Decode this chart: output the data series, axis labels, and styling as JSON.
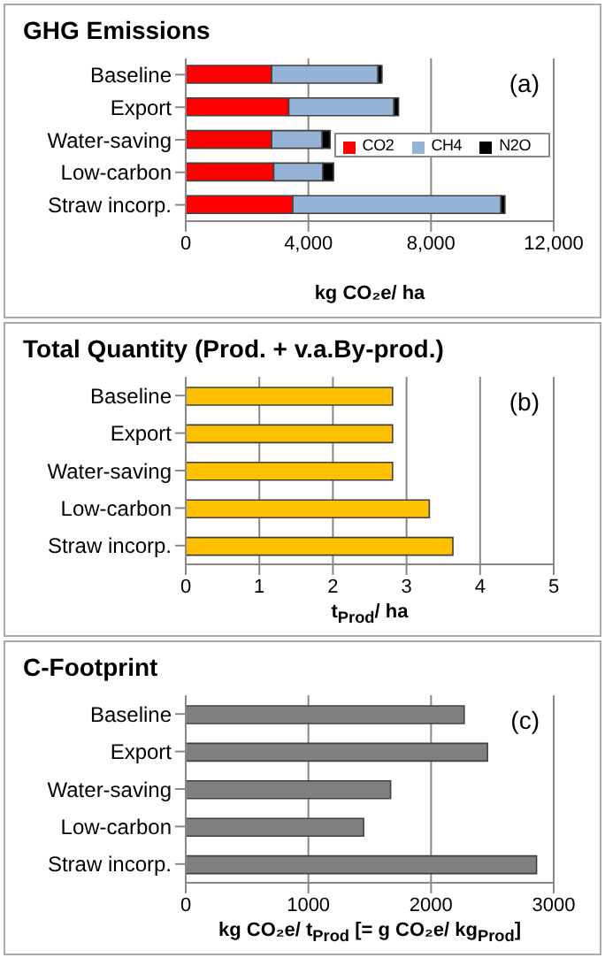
{
  "chart_data": [
    {
      "type": "bar",
      "orientation": "horizontal",
      "stacked": true,
      "title": "GHG Emissions",
      "xlabel": "kg CO₂e/ ha",
      "categories": [
        "Baseline",
        "Export",
        "Water-saving",
        "Low-carbon",
        "Straw incorp."
      ],
      "series": [
        {
          "name": "CO2",
          "color": "#ff0000",
          "values": [
            2800,
            3360,
            2800,
            2870,
            3490
          ]
        },
        {
          "name": "CH4",
          "color": "#95b3d7",
          "values": [
            3470,
            3430,
            1650,
            1600,
            6790
          ]
        },
        {
          "name": "N2O",
          "color": "#000000",
          "values": [
            130,
            150,
            260,
            350,
            130
          ]
        }
      ],
      "xlim": [
        0,
        12000
      ],
      "xticks": [
        0,
        {
          "value": 4000,
          "label": "4,000"
        },
        {
          "value": 8000,
          "label": "8,000"
        },
        {
          "value": 12000,
          "label": "12,000"
        }
      ],
      "grid": "x",
      "legend": "right",
      "annotations": [
        "(a)"
      ]
    },
    {
      "type": "bar",
      "orientation": "horizontal",
      "title": "Total Quantity  (Prod. + v.a.By-prod.)",
      "xlabel": "t$_{Prod}$/ ha",
      "categories": [
        "Baseline",
        "Export",
        "Water-saving",
        "Low-carbon",
        "Straw incorp."
      ],
      "values": [
        2.81,
        2.81,
        2.81,
        3.31,
        3.63
      ],
      "color": "#ffc000",
      "xlim": [
        0,
        5
      ],
      "xticks": [
        0,
        1,
        2,
        3,
        4,
        5
      ],
      "grid": "x",
      "annotations": [
        "(b)"
      ]
    },
    {
      "type": "bar",
      "orientation": "horizontal",
      "title": "C-Footprint",
      "xlabel": "kg CO₂e/ t$_{Prod}$ [= g CO₂e/ kg$_{Prod}$]",
      "categories": [
        "Baseline",
        "Export",
        "Water-saving",
        "Low-carbon",
        "Straw incorp."
      ],
      "values": [
        2270,
        2460,
        1670,
        1450,
        2860
      ],
      "color": "#808080",
      "xlim": [
        0,
        3000
      ],
      "xticks": [
        0,
        1000,
        2000,
        3000
      ],
      "grid": "x",
      "annotations": [
        "(c)"
      ]
    }
  ]
}
